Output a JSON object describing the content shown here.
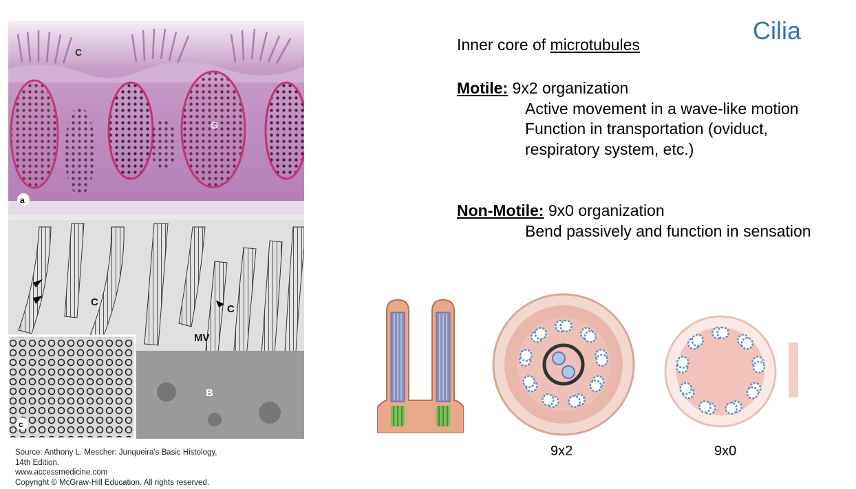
{
  "slide": {
    "title": "Cilia",
    "intro_prefix": "Inner core of ",
    "intro_link": "microtubules",
    "motile": {
      "heading": "Motile:",
      "org": "9x2 organization",
      "points": [
        "Active movement in a wave-like motion",
        "Function in transportation (oviduct,",
        "respiratory system, etc.)"
      ]
    },
    "nonmotile": {
      "heading": "Non-Motile:",
      "org": "9x0 organization",
      "points": [
        "Bend passively and function in sensation"
      ]
    }
  },
  "micrograph": {
    "labels": {
      "c_top": "C",
      "g": "G",
      "a": "a",
      "c_em1": "C",
      "c_em2": "C",
      "mv": "MV",
      "b": "B",
      "c_inset": "c"
    },
    "source_lines": [
      "Source: Anthony L. Mescher: Junqueira's Basic Histology,",
      "14th Edition.",
      "www.accessmedicine.com",
      "Copyright © McGraw-Hill Education. All rights reserved."
    ]
  },
  "diagrams": {
    "caption_9x2": "9x2",
    "caption_9x0": "9x0"
  },
  "colors": {
    "title": "#2e75b6",
    "lm_stain": "#b27ab6",
    "goblet": "#b03a6f",
    "tubule": "#4a90c8"
  }
}
